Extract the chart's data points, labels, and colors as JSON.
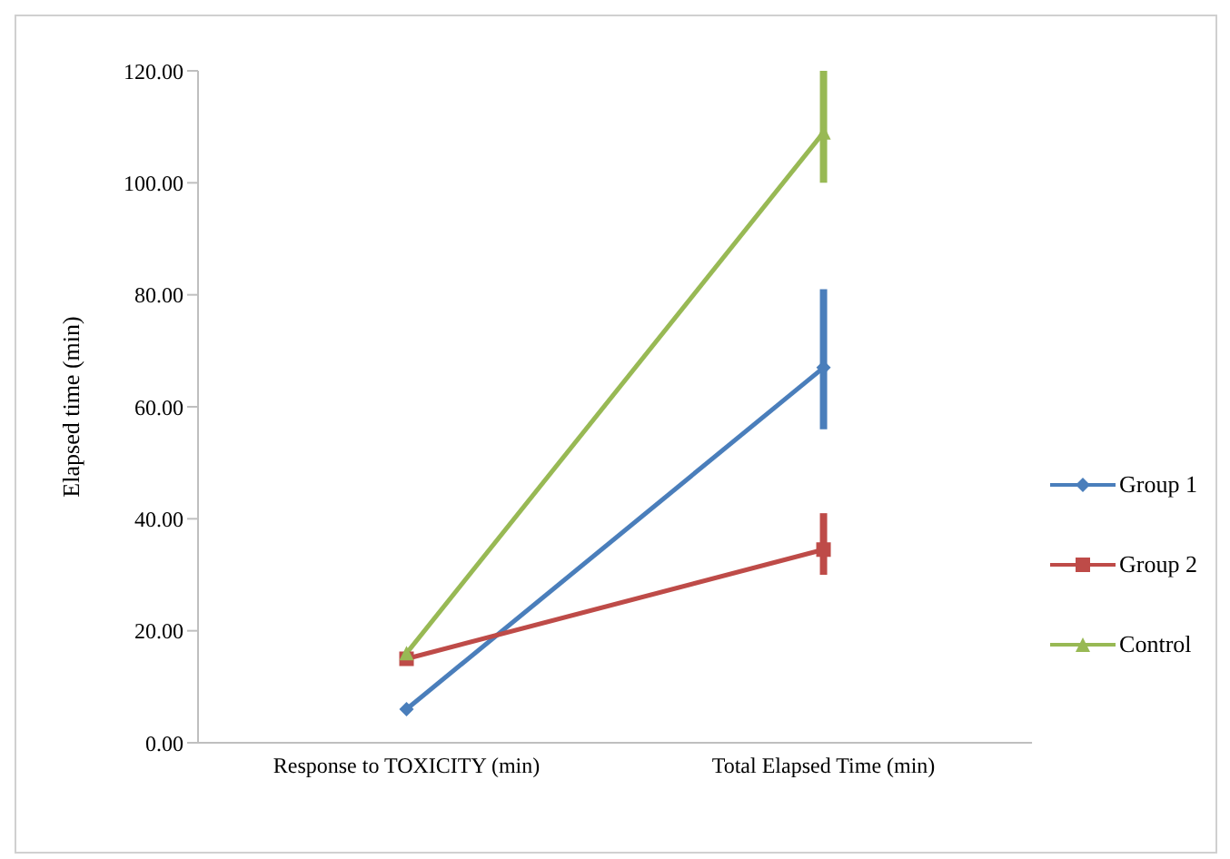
{
  "chart_data": {
    "type": "line",
    "ylabel": "Elapsed time (min)",
    "categories": [
      "Response to TOXICITY (min)",
      "Total Elapsed Time (min)"
    ],
    "series": [
      {
        "name": "Group 1",
        "color": "#4a7ebb",
        "values": [
          6,
          67
        ],
        "errors": [
          null,
          [
            56,
            81
          ]
        ],
        "marker": "diamond"
      },
      {
        "name": "Group 2",
        "color": "#be4b48",
        "values": [
          15,
          34.5
        ],
        "errors": [
          null,
          [
            30,
            41
          ]
        ],
        "marker": "square"
      },
      {
        "name": "Control",
        "color": "#98b954",
        "values": [
          16,
          109
        ],
        "errors": [
          null,
          [
            100,
            120
          ]
        ],
        "marker": "triangle"
      }
    ],
    "ylim": [
      0,
      120
    ],
    "yticks": [
      {
        "value": 0,
        "label": "0.00"
      },
      {
        "value": 20,
        "label": "20.00"
      },
      {
        "value": 40,
        "label": "40.00"
      },
      {
        "value": 60,
        "label": "60.00"
      },
      {
        "value": 80,
        "label": "80.00"
      },
      {
        "value": 100,
        "label": "100.00"
      },
      {
        "value": 120,
        "label": "120.00"
      }
    ],
    "grid": false,
    "legend": "right",
    "line_style": "solid"
  }
}
